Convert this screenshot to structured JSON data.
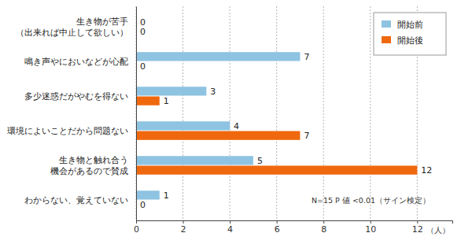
{
  "chart_data": {
    "type": "bar",
    "orientation": "horizontal",
    "categories": [
      "生き物が苦手\n（出来れば中止して欲しい）",
      "鳴き声やにおいなどが心配",
      "多少迷惑だがやむを得ない",
      "環境によいことだから問題ない",
      "生き物と触れ合う\n機会があるので賛成",
      "わからない、覚えていない"
    ],
    "series": [
      {
        "name": "開始前",
        "color": "#8ec3e2",
        "values": [
          0,
          7,
          3,
          4,
          5,
          1
        ]
      },
      {
        "name": "開始後",
        "color": "#f0680e",
        "values": [
          0,
          0,
          1,
          7,
          12,
          0
        ]
      }
    ],
    "x_label": "（人）",
    "annotation": "N=15 P 値 <0.01（サイン検定）",
    "xlim": [
      0,
      13.5
    ],
    "xticks": [
      0,
      2,
      4,
      6,
      8,
      10,
      12
    ],
    "grid": true,
    "data_labels": true,
    "legend": "upper right"
  }
}
